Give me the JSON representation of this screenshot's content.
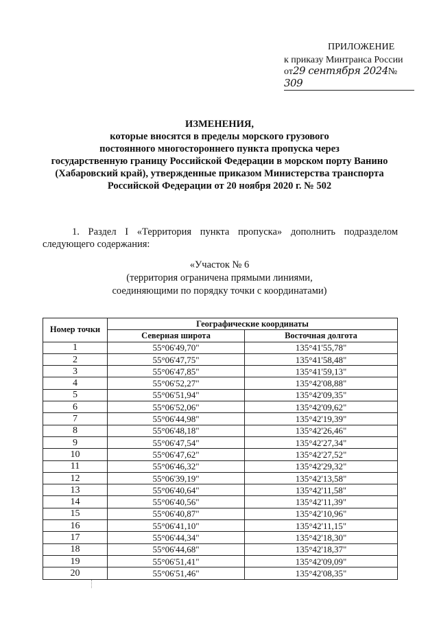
{
  "header": {
    "title": "ПРИЛОЖЕНИЕ",
    "line2": "к приказу Минтранса России",
    "from": "от",
    "date": "29 сентября 2024",
    "num_prefix": "№",
    "number": "309"
  },
  "doc_title": [
    "ИЗМЕНЕНИЯ,",
    "которые вносятся в пределы морского грузового",
    "постоянного многостороннего пункта пропуска через",
    "государственную границу Российской Федерации в морском порту Ванино",
    "(Хабаровский край), утвержденные приказом Министерства транспорта",
    "Российской Федерации от 20 ноября 2020 г. № 502"
  ],
  "paragraph": {
    "line1": "1. Раздел I «Территория пункта пропуска» дополнить подразделом",
    "line2": "следующего содержания:"
  },
  "section": [
    "«Участок № 6",
    "(территория ограничена прямыми линиями,",
    "соединяющими по порядку точки с координатами)"
  ],
  "table": {
    "col_point": "Номер точки",
    "group": "Географические координаты",
    "col_lat": "Северная широта",
    "col_lon": "Восточная долгота",
    "rows": [
      [
        "1",
        "55°06'49,70\"",
        "135°41'55,78\""
      ],
      [
        "2",
        "55°06'47,75\"",
        "135°41'58,48\""
      ],
      [
        "3",
        "55°06'47,85\"",
        "135°41'59,13\""
      ],
      [
        "4",
        "55°06'52,27\"",
        "135°42'08,88\""
      ],
      [
        "5",
        "55°06'51,94\"",
        "135°42'09,35\""
      ],
      [
        "6",
        "55°06'52,06\"",
        "135°42'09,62\""
      ],
      [
        "7",
        "55°06'44,98\"",
        "135°42'19,39\""
      ],
      [
        "8",
        "55°06'48,18\"",
        "135°42'26,46\""
      ],
      [
        "9",
        "55°06'47,54\"",
        "135°42'27,34\""
      ],
      [
        "10",
        "55°06'47,62\"",
        "135°42'27,52\""
      ],
      [
        "11",
        "55°06'46,32\"",
        "135°42'29,32\""
      ],
      [
        "12",
        "55°06'39,19\"",
        "135°42'13,58\""
      ],
      [
        "13",
        "55°06'40,64\"",
        "135°42'11,58\""
      ],
      [
        "14",
        "55°06'40,56\"",
        "135°42'11,39\""
      ],
      [
        "15",
        "55°06'40,87\"",
        "135°42'10,96\""
      ],
      [
        "16",
        "55°06'41,10\"",
        "135°42'11,15\""
      ],
      [
        "17",
        "55°06'44,34\"",
        "135°42'18,30\""
      ],
      [
        "18",
        "55°06'44,68\"",
        "135°42'18,37\""
      ],
      [
        "19",
        "55°06'51,41\"",
        "135°42'09,09\""
      ],
      [
        "20",
        "55°06'51,46\"",
        "135°42'08,35\""
      ]
    ]
  }
}
